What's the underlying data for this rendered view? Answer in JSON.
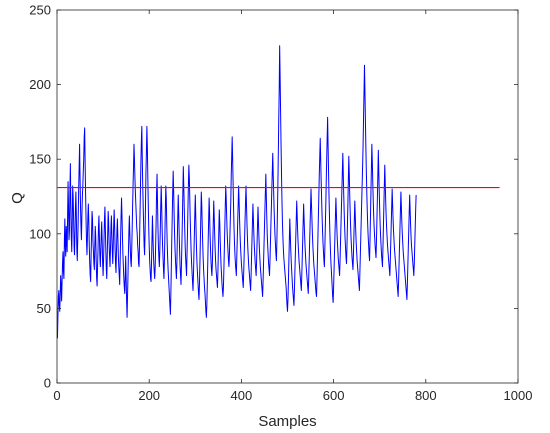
{
  "chart_data": {
    "type": "line",
    "title": "",
    "xlabel": "Samples",
    "ylabel": "Q",
    "xlim": [
      0,
      1000
    ],
    "ylim": [
      0,
      250
    ],
    "xticks": [
      0,
      200,
      400,
      600,
      800,
      1000
    ],
    "yticks": [
      0,
      50,
      100,
      150,
      200,
      250
    ],
    "grid": false,
    "box": true,
    "legend": "none",
    "colors": {
      "series": "#0000ff",
      "threshold": "#ff0000",
      "axes": "#262626"
    },
    "series": [
      {
        "x_start": 1,
        "x_step": 1,
        "values": [
          30,
          45,
          58,
          62,
          52,
          48,
          60,
          72,
          65,
          55,
          68,
          80,
          88,
          75,
          70,
          95,
          110,
          92,
          85,
          105,
          98,
          88,
          112,
          135,
          118,
          96,
          102,
          128,
          147,
          120,
          98,
          88,
          105,
          132,
          125,
          110,
          92,
          86,
          100,
          118,
          128,
          112,
          90,
          82,
          96,
          110,
          130,
          145,
          160,
          138,
          118,
          105,
          96,
          112,
          125,
          132,
          142,
          150,
          165,
          171,
          148,
          128,
          110,
          95,
          86,
          98,
          112,
          120,
          108,
          92,
          80,
          72,
          68,
          86,
          100,
          115,
          110,
          95,
          88,
          80,
          76,
          92,
          105,
          98,
          82,
          70,
          65,
          78,
          90,
          105,
          112,
          98,
          85,
          78,
          88,
          100,
          108,
          95,
          80,
          72,
          82,
          96,
          110,
          118,
          102,
          88,
          76,
          70,
          85,
          100,
          115,
          108,
          94,
          85,
          78,
          90,
          104,
          112,
          100,
          88,
          80,
          92,
          106,
          116,
          105,
          90,
          80,
          74,
          88,
          102,
          110,
          98,
          86,
          78,
          72,
          66,
          82,
          98,
          112,
          124,
          112,
          98,
          86,
          78,
          70,
          64,
          60,
          72,
          85,
          70,
          55,
          44,
          58,
          72,
          88,
          102,
          112,
          100,
          90,
          82,
          78,
          88,
          102,
          118,
          132,
          145,
          160,
          150,
          138,
          128,
          120,
          112,
          104,
          100,
          92,
          88,
          80,
          78,
          94,
          112,
          130,
          148,
          162,
          172,
          150,
          132,
          118,
          105,
          92,
          86,
          100,
          120,
          142,
          155,
          172,
          158,
          138,
          120,
          104,
          92,
          82,
          76,
          70,
          68,
          80,
          96,
          112,
          100,
          88,
          80,
          74,
          70,
          78,
          92,
          108,
          128,
          140,
          122,
          104,
          92,
          84,
          78,
          88,
          102,
          118,
          132,
          120,
          104,
          92,
          84,
          76,
          70,
          82,
          98,
          116,
          132,
          124,
          108,
          94,
          84,
          76,
          70,
          64,
          58,
          52,
          46,
          60,
          78,
          96,
          112,
          128,
          142,
          130,
          114,
          100,
          90,
          82,
          76,
          70,
          80,
          96,
          112,
          126,
          114,
          100,
          88,
          78,
          72,
          66,
          80,
          94,
          110,
          128,
          145,
          132,
          118,
          104,
          92,
          84,
          78,
          72,
          86,
          100,
          116,
          132,
          146,
          138,
          124,
          110,
          98,
          88,
          80,
          74,
          68,
          62,
          72,
          86,
          100,
          114,
          126,
          112,
          98,
          86,
          78,
          72,
          66,
          60,
          56,
          66,
          80,
          96,
          112,
          128,
          120,
          106,
          94,
          84,
          76,
          70,
          64,
          60,
          54,
          48,
          44,
          52,
          66,
          80,
          96,
          110,
          124,
          114,
          100,
          90,
          82,
          76,
          72,
          80,
          94,
          108,
          122,
          112,
          100,
          90,
          82,
          76,
          72,
          68,
          64,
          74,
          88,
          102,
          116,
          108,
          96,
          86,
          78,
          72,
          66,
          62,
          58,
          64,
          76,
          90,
          104,
          118,
          132,
          124,
          112,
          102,
          94,
          88,
          82,
          78,
          86,
          98,
          110,
          122,
          140,
          152,
          165,
          150,
          134,
          118,
          104,
          94,
          86,
          80,
          76,
          72,
          84,
          96,
          108,
          120,
          132,
          122,
          110,
          100,
          92,
          86,
          80,
          76,
          72,
          68,
          64,
          74,
          86,
          98,
          110,
          122,
          132,
          120,
          108,
          98,
          90,
          84,
          78,
          74,
          70,
          66,
          62,
          72,
          84,
          96,
          108,
          120,
          110,
          100,
          92,
          86,
          80,
          76,
          72,
          82,
          94,
          106,
          118,
          108,
          98,
          90,
          84,
          78,
          74,
          70,
          66,
          62,
          58,
          68,
          80,
          92,
          104,
          116,
          128,
          140,
          126,
          112,
          100,
          92,
          86,
          80,
          76,
          72,
          82,
          94,
          106,
          118,
          130,
          142,
          154,
          140,
          128,
          116,
          106,
          98,
          92,
          86,
          82,
          96,
          112,
          130,
          152,
          176,
          196,
          226,
          205,
          182,
          160,
          140,
          122,
          108,
          98,
          90,
          84,
          80,
          76,
          72,
          68,
          64,
          58,
          52,
          48,
          56,
          68,
          82,
          96,
          110,
          100,
          90,
          82,
          76,
          70,
          64,
          60,
          56,
          52,
          62,
          74,
          86,
          98,
          110,
          122,
          112,
          102,
          94,
          88,
          82,
          78,
          74,
          70,
          66,
          62,
          72,
          84,
          96,
          108,
          120,
          110,
          100,
          92,
          86,
          80,
          76,
          72,
          68,
          64,
          60,
          70,
          82,
          94,
          106,
          118,
          130,
          120,
          110,
          100,
          92,
          86,
          80,
          76,
          72,
          68,
          64,
          60,
          58,
          70,
          84,
          98,
          112,
          126,
          140,
          152,
          164,
          150,
          136,
          124,
          112,
          102,
          94,
          88,
          82,
          78,
          90,
          104,
          118,
          134,
          150,
          164,
          178,
          160,
          142,
          126,
          112,
          100,
          90,
          82,
          76,
          70,
          64,
          58,
          54,
          64,
          76,
          88,
          100,
          112,
          124,
          114,
          104,
          96,
          90,
          84,
          80,
          76,
          72,
          82,
          94,
          106,
          118,
          130,
          142,
          154,
          140,
          126,
          114,
          104,
          96,
          90,
          84,
          80,
          92,
          106,
          120,
          136,
          152,
          140,
          126,
          114,
          104,
          96,
          90,
          84,
          80,
          76,
          86,
          98,
          110,
          122,
          112,
          102,
          94,
          88,
          82,
          78,
          74,
          70,
          66,
          62,
          74,
          86,
          98,
          110,
          122,
          134,
          146,
          160,
          178,
          196,
          213,
          195,
          176,
          158,
          142,
          128,
          116,
          106,
          98,
          92,
          86,
          82,
          96,
          112,
          128,
          144,
          160,
          148,
          134,
          122,
          112,
          104,
          98,
          92,
          88,
          84,
          96,
          110,
          124,
          140,
          156,
          142,
          128,
          116,
          106,
          98,
          92,
          86,
          82,
          78,
          90,
          104,
          118,
          132,
          146,
          134,
          122,
          112,
          104,
          98,
          92,
          88,
          84,
          80,
          76,
          72,
          82,
          94,
          106,
          118,
          130,
          120,
          110,
          102,
          96,
          90,
          86,
          82,
          78,
          74,
          70,
          66,
          62,
          58,
          68,
          80,
          92,
          104,
          116,
          128,
          118,
          108,
          100,
          94,
          88,
          84,
          80,
          76,
          72,
          68,
          64,
          60,
          56,
          66,
          78,
          90,
          102,
          114,
          126,
          116,
          106,
          98,
          92,
          88,
          84,
          80,
          76,
          72,
          80,
          92,
          104,
          116,
          126
        ]
      },
      {
        "kind": "threshold",
        "y": 131,
        "x_start": 1,
        "x_end": 960
      }
    ]
  }
}
